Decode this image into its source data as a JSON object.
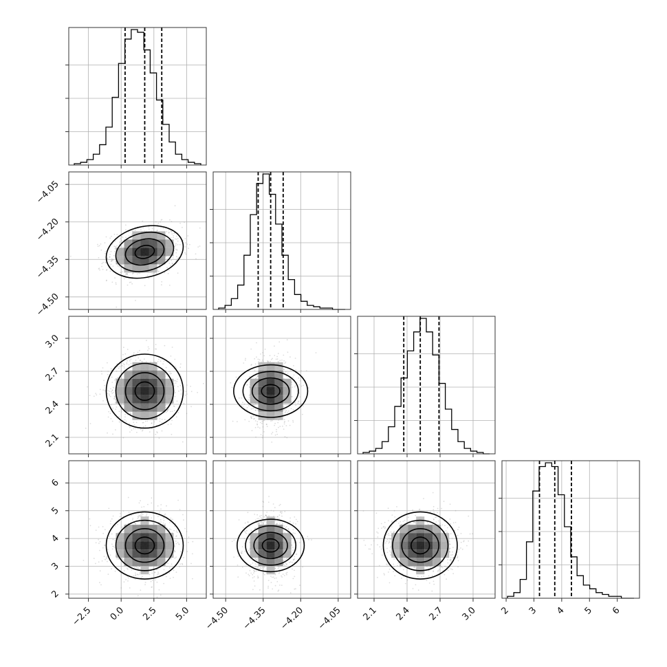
{
  "chart_data": {
    "type": "corner",
    "n_params": 4,
    "parameters": [
      {
        "id": "p0",
        "median": 1.8,
        "q16": 0.3,
        "q84": 3.1,
        "range": [
          -4.0,
          6.5
        ],
        "ticks": [
          "-2.5",
          "0.0",
          "2.5",
          "5.0"
        ],
        "tick_values": [
          -2.5,
          0.0,
          2.5,
          5.0
        ]
      },
      {
        "id": "p1",
        "median": -4.32,
        "q16": -4.37,
        "q84": -4.27,
        "range": [
          -4.55,
          -4.0
        ],
        "ticks": [
          "-4.50",
          "-4.35",
          "-4.20",
          "-4.05"
        ],
        "tick_values": [
          -4.5,
          -4.35,
          -4.2,
          -4.05
        ]
      },
      {
        "id": "p2",
        "median": 2.52,
        "q16": 2.37,
        "q84": 2.69,
        "range": [
          1.95,
          3.2
        ],
        "ticks": [
          "2.1",
          "2.4",
          "2.7",
          "3.0"
        ],
        "tick_values": [
          2.1,
          2.4,
          2.7,
          3.0
        ]
      },
      {
        "id": "p3",
        "median": 3.75,
        "q16": 3.2,
        "q84": 4.35,
        "range": [
          1.85,
          6.8
        ],
        "ticks": [
          "2",
          "3",
          "4",
          "5",
          "6"
        ],
        "tick_values": [
          2,
          3,
          4,
          5,
          6
        ]
      }
    ],
    "histograms": [
      {
        "param": "p0",
        "bins": 20,
        "counts": [
          1,
          2,
          4,
          8,
          15,
          28,
          50,
          75,
          93,
          100,
          98,
          85,
          68,
          48,
          30,
          17,
          8,
          4,
          2,
          1
        ]
      },
      {
        "param": "p1",
        "bins": 20,
        "counts": [
          1,
          3,
          8,
          18,
          40,
          70,
          93,
          100,
          85,
          63,
          40,
          22,
          11,
          6,
          3,
          2,
          1,
          1,
          0,
          0
        ]
      },
      {
        "param": "p2",
        "bins": 20,
        "counts": [
          1,
          2,
          4,
          9,
          20,
          35,
          56,
          76,
          90,
          100,
          90,
          73,
          52,
          33,
          18,
          9,
          4,
          2,
          1,
          0
        ]
      },
      {
        "param": "p3",
        "bins": 20,
        "counts": [
          1,
          3,
          10,
          30,
          57,
          70,
          72,
          70,
          55,
          38,
          22,
          12,
          7,
          5,
          3,
          2,
          1,
          1,
          0,
          0
        ]
      }
    ],
    "pairs": [
      {
        "x": "p0",
        "y": "p1",
        "corr": 0.2
      },
      {
        "x": "p0",
        "y": "p2",
        "corr": 0.0
      },
      {
        "x": "p1",
        "y": "p2",
        "corr": 0.0
      },
      {
        "x": "p0",
        "y": "p3",
        "corr": 0.0
      },
      {
        "x": "p1",
        "y": "p3",
        "corr": 0.0
      },
      {
        "x": "p2",
        "y": "p3",
        "corr": 0.0
      }
    ],
    "contour_levels_sigma": [
      0.5,
      1.0,
      1.5,
      2.0
    ],
    "quantiles": [
      0.16,
      0.5,
      0.84
    ],
    "title": "",
    "xlabel": "",
    "ylabel": "",
    "grid": true,
    "colors": {
      "points": "#9a9a9a",
      "line": "#000000",
      "grid": "#b0b0b0"
    }
  }
}
